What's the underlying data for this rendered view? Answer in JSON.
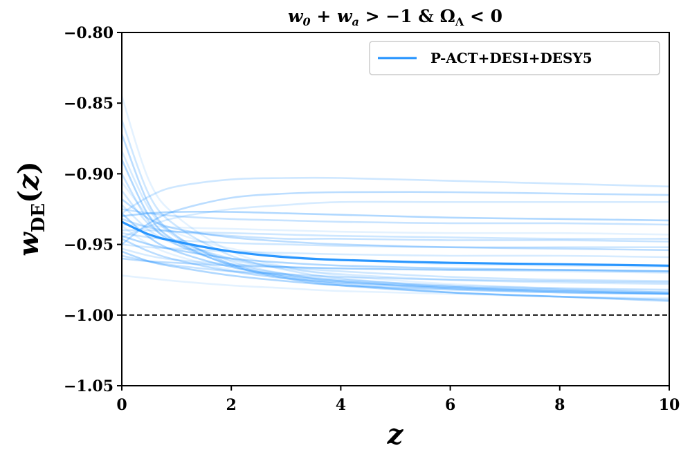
{
  "chart_data": {
    "type": "line",
    "title": "w₀ + wₐ > −1 & Ω_Λ < 0",
    "xlabel": "z",
    "ylabel": "w_DE(z)",
    "xlim": [
      0,
      10
    ],
    "ylim": [
      -1.05,
      -0.8
    ],
    "xticks": [
      0,
      2,
      4,
      6,
      8,
      10
    ],
    "yticks": [
      -1.05,
      -1.0,
      -0.95,
      -0.9,
      -0.85,
      -0.8
    ],
    "xtick_labels": [
      "0",
      "2",
      "4",
      "6",
      "8",
      "10"
    ],
    "ytick_labels": [
      "−1.05",
      "−1.00",
      "−0.95",
      "−0.90",
      "−0.85",
      "−0.80"
    ],
    "grid": false,
    "legend": {
      "position": "top-right",
      "entries": [
        "P-ACT+DESI+DESY5"
      ]
    },
    "reference_line": {
      "y": -1.0,
      "style": "dashed",
      "color": "#000000"
    },
    "color": "#1e90ff",
    "series": [
      {
        "name": "P-ACT+DESI+DESY5",
        "role": "mean",
        "x": [
          0,
          0.5,
          1,
          2,
          3,
          4,
          6,
          8,
          10
        ],
        "y": [
          -0.934,
          -0.943,
          -0.948,
          -0.955,
          -0.959,
          -0.961,
          -0.963,
          -0.964,
          -0.965
        ]
      },
      {
        "role": "sample",
        "x": [
          0,
          0.5,
          1,
          2,
          3,
          4,
          6,
          8,
          10
        ],
        "y": [
          -0.845,
          -0.905,
          -0.93,
          -0.955,
          -0.966,
          -0.972,
          -0.978,
          -0.981,
          -0.983
        ]
      },
      {
        "role": "sample",
        "x": [
          0,
          0.5,
          1,
          2,
          3,
          4,
          6,
          8,
          10
        ],
        "y": [
          -0.862,
          -0.915,
          -0.937,
          -0.958,
          -0.968,
          -0.974,
          -0.98,
          -0.983,
          -0.985
        ]
      },
      {
        "role": "sample",
        "x": [
          0,
          0.5,
          1,
          2,
          3,
          4,
          6,
          8,
          10
        ],
        "y": [
          -0.872,
          -0.922,
          -0.944,
          -0.964,
          -0.973,
          -0.978,
          -0.984,
          -0.987,
          -0.989
        ]
      },
      {
        "role": "sample",
        "x": [
          0,
          0.5,
          1,
          2,
          3,
          4,
          6,
          8,
          10
        ],
        "y": [
          -0.884,
          -0.925,
          -0.945,
          -0.962,
          -0.971,
          -0.976,
          -0.981,
          -0.984,
          -0.985
        ]
      },
      {
        "role": "sample",
        "x": [
          0,
          0.5,
          1,
          2,
          3,
          4,
          6,
          8,
          10
        ],
        "y": [
          -0.89,
          -0.93,
          -0.948,
          -0.965,
          -0.974,
          -0.979,
          -0.984,
          -0.987,
          -0.99
        ]
      },
      {
        "role": "sample",
        "x": [
          0,
          0.5,
          1,
          2,
          3,
          4,
          6,
          8,
          10
        ],
        "y": [
          -0.9,
          -0.934,
          -0.95,
          -0.964,
          -0.971,
          -0.975,
          -0.979,
          -0.981,
          -0.982
        ]
      },
      {
        "role": "sample",
        "x": [
          0,
          0.5,
          1,
          2,
          3,
          4,
          6,
          8,
          10
        ],
        "y": [
          -0.906,
          -0.93,
          -0.942,
          -0.953,
          -0.958,
          -0.961,
          -0.964,
          -0.965,
          -0.966
        ]
      },
      {
        "role": "sample",
        "x": [
          0,
          0.5,
          1,
          2,
          3,
          4,
          6,
          8,
          10
        ],
        "y": [
          -0.912,
          -0.936,
          -0.948,
          -0.96,
          -0.966,
          -0.969,
          -0.973,
          -0.975,
          -0.976
        ]
      },
      {
        "role": "sample",
        "x": [
          0,
          0.5,
          1,
          2,
          3,
          4,
          6,
          8,
          10
        ],
        "y": [
          -0.918,
          -0.932,
          -0.939,
          -0.945,
          -0.948,
          -0.95,
          -0.952,
          -0.953,
          -0.954
        ]
      },
      {
        "role": "sample",
        "x": [
          0,
          0.5,
          1,
          2,
          3,
          4,
          6,
          8,
          10
        ],
        "y": [
          -0.922,
          -0.94,
          -0.95,
          -0.961,
          -0.967,
          -0.971,
          -0.975,
          -0.977,
          -0.978
        ]
      },
      {
        "role": "sample",
        "x": [
          0,
          0.5,
          1,
          2,
          3,
          4,
          6,
          8,
          10
        ],
        "y": [
          -0.928,
          -0.945,
          -0.955,
          -0.966,
          -0.972,
          -0.976,
          -0.98,
          -0.982,
          -0.984
        ]
      },
      {
        "role": "sample",
        "x": [
          0,
          0.5,
          1,
          2,
          3,
          4,
          6,
          8,
          10
        ],
        "y": [
          -0.932,
          -0.938,
          -0.941,
          -0.944,
          -0.946,
          -0.946,
          -0.947,
          -0.947,
          -0.948
        ]
      },
      {
        "role": "sample",
        "x": [
          0,
          0.5,
          1,
          2,
          3,
          4,
          6,
          8,
          10
        ],
        "y": [
          -0.937,
          -0.95,
          -0.958,
          -0.968,
          -0.973,
          -0.977,
          -0.981,
          -0.983,
          -0.984
        ]
      },
      {
        "role": "sample",
        "x": [
          0,
          0.5,
          1,
          2,
          3,
          4,
          6,
          8,
          10
        ],
        "y": [
          -0.942,
          -0.945,
          -0.947,
          -0.949,
          -0.95,
          -0.951,
          -0.952,
          -0.952,
          -0.952
        ]
      },
      {
        "role": "sample",
        "x": [
          0,
          0.5,
          1,
          2,
          3,
          4,
          6,
          8,
          10
        ],
        "y": [
          -0.946,
          -0.955,
          -0.961,
          -0.969,
          -0.974,
          -0.977,
          -0.981,
          -0.983,
          -0.985
        ]
      },
      {
        "role": "sample",
        "x": [
          0,
          0.5,
          1,
          2,
          3,
          4,
          6,
          8,
          10
        ],
        "y": [
          -0.95,
          -0.952,
          -0.953,
          -0.955,
          -0.956,
          -0.957,
          -0.958,
          -0.958,
          -0.959
        ]
      },
      {
        "role": "sample",
        "x": [
          0,
          0.5,
          1,
          2,
          3,
          4,
          6,
          8,
          10
        ],
        "y": [
          -0.955,
          -0.962,
          -0.966,
          -0.972,
          -0.976,
          -0.979,
          -0.982,
          -0.984,
          -0.985
        ]
      },
      {
        "role": "sample",
        "x": [
          0,
          0.5,
          1,
          2,
          3,
          4,
          6,
          8,
          10
        ],
        "y": [
          -0.958,
          -0.962,
          -0.965,
          -0.969,
          -0.971,
          -0.973,
          -0.975,
          -0.976,
          -0.977
        ]
      },
      {
        "role": "sample",
        "x": [
          0,
          0.5,
          1,
          2,
          3,
          4,
          6,
          8,
          10
        ],
        "y": [
          -0.972,
          -0.974,
          -0.976,
          -0.979,
          -0.981,
          -0.983,
          -0.985,
          -0.987,
          -0.988
        ]
      },
      {
        "role": "sample",
        "x": [
          0,
          0.5,
          1,
          2,
          3,
          4,
          6,
          8,
          10
        ],
        "y": [
          -0.928,
          -0.916,
          -0.909,
          -0.904,
          -0.903,
          -0.903,
          -0.905,
          -0.907,
          -0.909
        ]
      },
      {
        "role": "sample",
        "x": [
          0,
          0.5,
          1,
          2,
          3,
          4,
          6,
          8,
          10
        ],
        "y": [
          -0.95,
          -0.935,
          -0.926,
          -0.917,
          -0.914,
          -0.913,
          -0.913,
          -0.914,
          -0.915
        ]
      },
      {
        "role": "sample",
        "x": [
          0,
          0.5,
          1,
          2,
          3,
          4,
          6,
          8,
          10
        ],
        "y": [
          -0.945,
          -0.937,
          -0.931,
          -0.925,
          -0.922,
          -0.92,
          -0.92,
          -0.92,
          -0.92
        ]
      },
      {
        "role": "sample",
        "x": [
          0,
          0.5,
          1,
          2,
          3,
          4,
          6,
          8,
          10
        ],
        "y": [
          -0.93,
          -0.928,
          -0.927,
          -0.927,
          -0.928,
          -0.929,
          -0.931,
          -0.932,
          -0.933
        ]
      },
      {
        "role": "sample",
        "x": [
          0,
          0.5,
          1,
          2,
          3,
          4,
          6,
          8,
          10
        ],
        "y": [
          -0.925,
          -0.928,
          -0.93,
          -0.932,
          -0.933,
          -0.934,
          -0.935,
          -0.935,
          -0.936
        ]
      },
      {
        "role": "sample",
        "x": [
          0,
          0.5,
          1,
          2,
          3,
          4,
          6,
          8,
          10
        ],
        "y": [
          -0.936,
          -0.937,
          -0.938,
          -0.939,
          -0.94,
          -0.941,
          -0.942,
          -0.942,
          -0.943
        ]
      },
      {
        "role": "sample",
        "x": [
          0,
          0.5,
          1,
          2,
          3,
          4,
          6,
          8,
          10
        ],
        "y": [
          -0.94,
          -0.94,
          -0.941,
          -0.942,
          -0.943,
          -0.944,
          -0.945,
          -0.946,
          -0.946
        ]
      },
      {
        "role": "sample",
        "x": [
          0,
          0.5,
          1,
          2,
          3,
          4,
          6,
          8,
          10
        ],
        "y": [
          -0.96,
          -0.962,
          -0.963,
          -0.965,
          -0.966,
          -0.967,
          -0.968,
          -0.968,
          -0.969
        ]
      },
      {
        "role": "sample",
        "x": [
          0,
          0.5,
          1,
          2,
          3,
          4,
          6,
          8,
          10
        ],
        "y": [
          -0.953,
          -0.958,
          -0.961,
          -0.964,
          -0.966,
          -0.967,
          -0.968,
          -0.969,
          -0.97
        ]
      },
      {
        "role": "sample",
        "x": [
          0,
          0.5,
          1,
          2,
          3,
          4,
          6,
          8,
          10
        ],
        "y": [
          -0.944,
          -0.95,
          -0.954,
          -0.96,
          -0.963,
          -0.965,
          -0.967,
          -0.968,
          -0.969
        ]
      }
    ]
  }
}
